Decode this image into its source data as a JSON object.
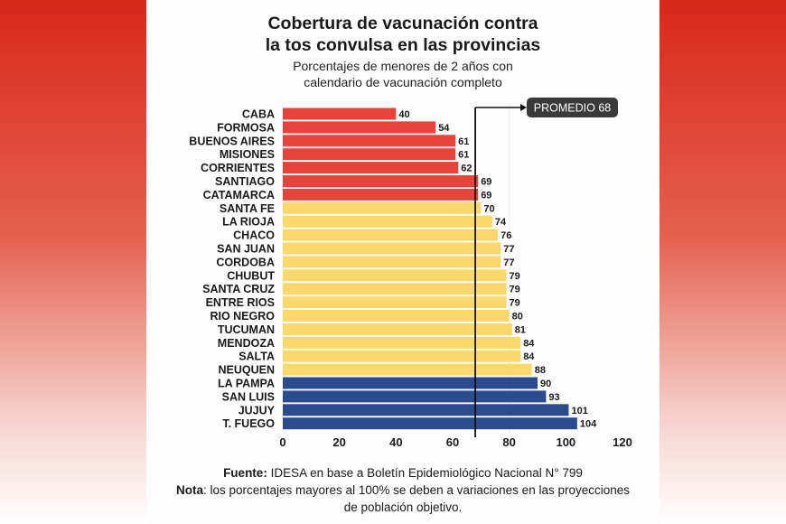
{
  "chart_data": {
    "type": "bar",
    "orientation": "horizontal",
    "title": "Cobertura de vacunación contra la tos convulsa en las provincias",
    "title_lines": [
      "Cobertura de vacunación contra",
      "la tos convulsa en las provincias"
    ],
    "subtitle_lines": [
      "Porcentajes de menores de 2 años con",
      "calendario de vacunación completo"
    ],
    "categories": [
      "CABA",
      "FORMOSA",
      "BUENOS AIRES",
      "MISIONES",
      "CORRIENTES",
      "SANTIAGO",
      "CATAMARCA",
      "SANTA FE",
      "LA RIOJA",
      "CHACO",
      "SAN JUAN",
      "CORDOBA",
      "CHUBUT",
      "SANTA CRUZ",
      "ENTRE RIOS",
      "RIO NEGRO",
      "TUCUMAN",
      "MENDOZA",
      "SALTA",
      "NEUQUEN",
      "LA PAMPA",
      "SAN LUIS",
      "JUJUY",
      "T. FUEGO"
    ],
    "values": [
      40,
      54,
      61,
      61,
      62,
      69,
      69,
      70,
      74,
      76,
      77,
      77,
      79,
      79,
      79,
      80,
      81,
      84,
      84,
      88,
      90,
      93,
      101,
      104
    ],
    "bar_groups": [
      "red",
      "red",
      "red",
      "red",
      "red",
      "red",
      "red",
      "yellow",
      "yellow",
      "yellow",
      "yellow",
      "yellow",
      "yellow",
      "yellow",
      "yellow",
      "yellow",
      "yellow",
      "yellow",
      "yellow",
      "yellow",
      "blue",
      "blue",
      "blue",
      "blue"
    ],
    "colors": {
      "red": "#e8433a",
      "yellow": "#fbd86b",
      "blue": "#2b4b8f"
    },
    "xlim": [
      0,
      120
    ],
    "xticks": [
      0,
      20,
      40,
      60,
      80,
      100,
      120
    ],
    "reference_line": {
      "value": 68,
      "label": "PROMEDIO 68"
    },
    "grid": false,
    "footer": {
      "source_label": "Fuente:",
      "source_text": " IDESA en base a Boletín Epidemiológico Nacional N° 799",
      "note_label": "Nota",
      "note_text": ": los porcentajes mayores al 100% se deben a variaciones en las proyecciones de población objetivo."
    }
  }
}
